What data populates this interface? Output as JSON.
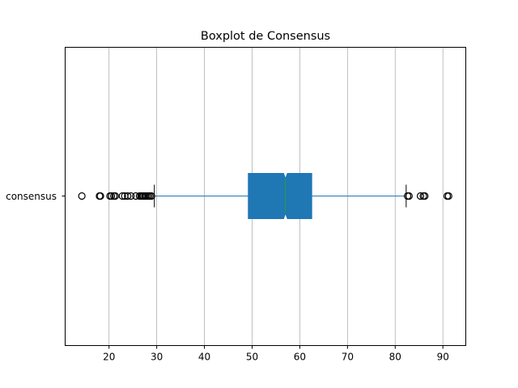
{
  "chart_data": {
    "type": "boxplot",
    "orientation": "horizontal",
    "title": "Boxplot de Consensus",
    "xlabel": "",
    "ylabel": "",
    "category": "consensus",
    "notched": true,
    "grid": "x-only",
    "xlim": [
      10.8,
      94.8
    ],
    "xticks": [
      20,
      30,
      40,
      50,
      60,
      70,
      80,
      90
    ],
    "box": {
      "whisker_low": 29.5,
      "q1": 49.2,
      "median": 57.0,
      "q3": 62.5,
      "whisker_high": 82.3,
      "notch_low": 56.6,
      "notch_high": 57.4
    },
    "outliers": [
      14.3,
      18.0,
      18.2,
      20.2,
      20.5,
      21.0,
      21.3,
      22.8,
      23.3,
      23.9,
      24.6,
      25.6,
      26.4,
      26.7,
      27.0,
      27.2,
      27.5,
      27.7,
      28.0,
      28.3,
      28.6,
      28.9,
      82.6,
      82.9,
      85.3,
      85.9,
      86.2,
      90.9,
      91.2
    ],
    "colors": {
      "box_fill": "#1f77b4",
      "whisker_line": "#1f77b4",
      "median_line": "#2ca02c",
      "caps": "#000000",
      "outlier_edge": "#000000",
      "grid": "#b0b0b0"
    }
  }
}
